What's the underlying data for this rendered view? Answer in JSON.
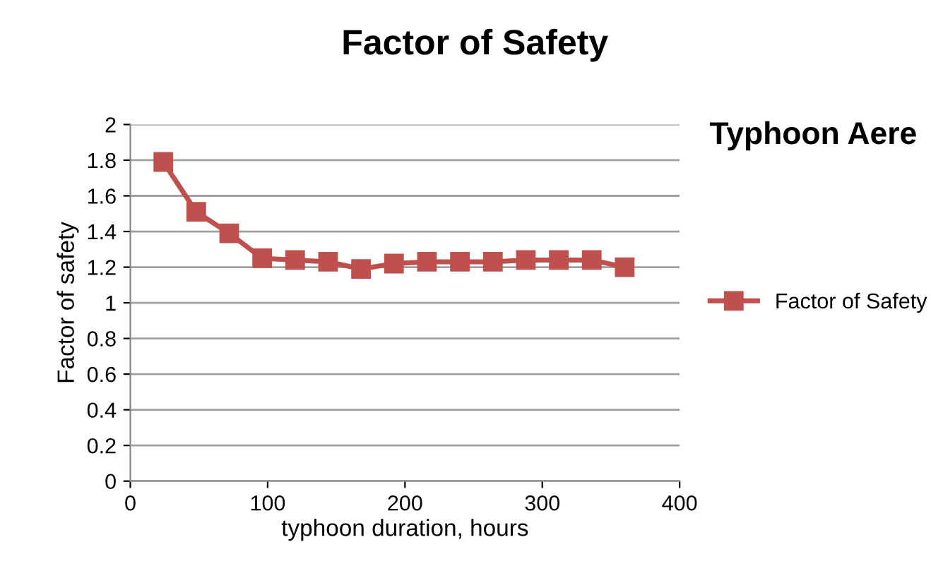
{
  "chart_data": {
    "type": "line",
    "title": "Factor of Safety",
    "xlabel": "typhoon duration, hours",
    "ylabel": "Factor of safety",
    "annotations": [
      "Typhoon Aere"
    ],
    "series": [
      {
        "name": "Factor of Safety",
        "color": "#c0504d",
        "x": [
          24,
          48,
          72,
          96,
          120,
          144,
          168,
          192,
          216,
          240,
          264,
          288,
          312,
          336,
          360
        ],
        "values": [
          1.79,
          1.51,
          1.39,
          1.25,
          1.24,
          1.23,
          1.19,
          1.22,
          1.23,
          1.23,
          1.23,
          1.24,
          1.24,
          1.24,
          1.2
        ]
      }
    ],
    "xlim": [
      0,
      400
    ],
    "xticks": [
      0,
      100,
      200,
      300,
      400
    ],
    "ylim": [
      0,
      2
    ],
    "yticks": [
      0,
      0.2,
      0.4,
      0.6,
      0.8,
      1,
      1.2,
      1.4,
      1.6,
      1.8,
      2
    ],
    "grid": "y",
    "legend": "right",
    "marker": "square",
    "line_style": "solid"
  }
}
